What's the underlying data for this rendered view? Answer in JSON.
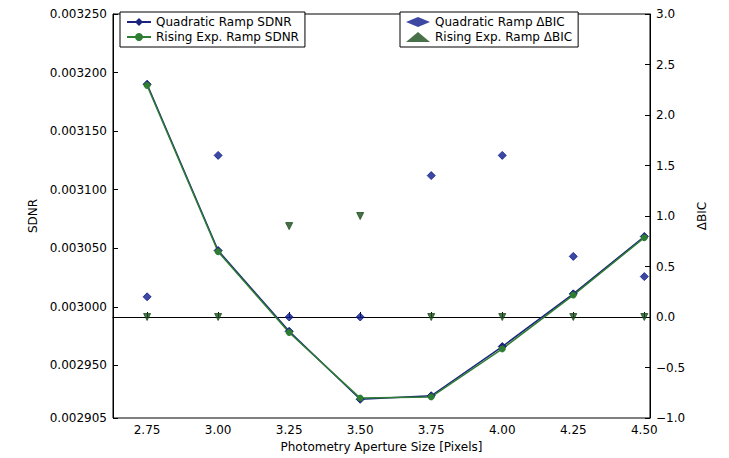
{
  "chart_data": {
    "type": "line",
    "xlabel": "Photometry Aperture Size [Pixels]",
    "ylabel": "SDNR",
    "y2label": "ΔBIC",
    "x": [
      2.75,
      3.0,
      3.25,
      3.5,
      3.75,
      4.0,
      4.25,
      4.5
    ],
    "xlim": [
      2.63,
      4.52
    ],
    "xticks": [
      {
        "value": 2.75,
        "label": "2.75"
      },
      {
        "value": 3.0,
        "label": "3.00"
      },
      {
        "value": 3.25,
        "label": "3.25"
      },
      {
        "value": 3.5,
        "label": "3.50"
      },
      {
        "value": 3.75,
        "label": "3.75"
      },
      {
        "value": 4.0,
        "label": "4.00"
      },
      {
        "value": 4.25,
        "label": "4.25"
      },
      {
        "value": 4.5,
        "label": "4.50"
      }
    ],
    "ylim": [
      0.002905,
      0.00325
    ],
    "yticks": [
      {
        "value": 0.002905,
        "label": "0.002905"
      },
      {
        "value": 0.00295,
        "label": "0.002950"
      },
      {
        "value": 0.003,
        "label": "0.003000"
      },
      {
        "value": 0.00305,
        "label": "0.003050"
      },
      {
        "value": 0.0031,
        "label": "0.003100"
      },
      {
        "value": 0.00315,
        "label": "0.003150"
      },
      {
        "value": 0.0032,
        "label": "0.003200"
      },
      {
        "value": 0.00325,
        "label": "0.003250"
      }
    ],
    "y2lim": [
      -1.0,
      3.0
    ],
    "y2ticks": [
      {
        "value": -1.0,
        "label": "−1.0"
      },
      {
        "value": -0.5,
        "label": "−0.5"
      },
      {
        "value": 0.0,
        "label": "0.0"
      },
      {
        "value": 0.5,
        "label": "0.5"
      },
      {
        "value": 1.0,
        "label": "1.0"
      },
      {
        "value": 1.5,
        "label": "1.5"
      },
      {
        "value": 2.0,
        "label": "2.0"
      },
      {
        "value": 2.5,
        "label": "2.5"
      },
      {
        "value": 3.0,
        "label": "3.0"
      }
    ],
    "grid": false,
    "legend": "upper left",
    "series": [
      {
        "name": "Quadratic Ramp SDNR",
        "type": "line",
        "color": "#1a237e",
        "marker": "diamond",
        "line_style": "solid",
        "values": [
          0.00319,
          0.003048,
          0.002979,
          0.002921,
          0.002924,
          0.002966,
          0.003011,
          0.00306
        ]
      },
      {
        "name": "Rising Exp. Ramp SDNR",
        "type": "line",
        "color": "#2e7d32",
        "marker": "circle",
        "line_style": "solid",
        "values": [
          0.003189,
          0.003047,
          0.002978,
          0.002922,
          0.002923,
          0.002964,
          0.00301,
          0.003059
        ]
      },
      {
        "name": "Quadratic Ramp ΔBIC",
        "type": "scatter",
        "axis": "y2",
        "color": "#0d1a8c",
        "marker": "diamond",
        "values": [
          0.2,
          1.6,
          0.0,
          0.0,
          1.4,
          1.6,
          0.6,
          0.4
        ]
      },
      {
        "name": "Rising Exp. Ramp ΔBIC",
        "type": "scatter",
        "axis": "y2",
        "color": "#1b4d1b",
        "marker": "triangle_down",
        "values": [
          0.0,
          0.0,
          0.9,
          1.0,
          0.0,
          0.0,
          0.0,
          0.0
        ]
      }
    ]
  }
}
